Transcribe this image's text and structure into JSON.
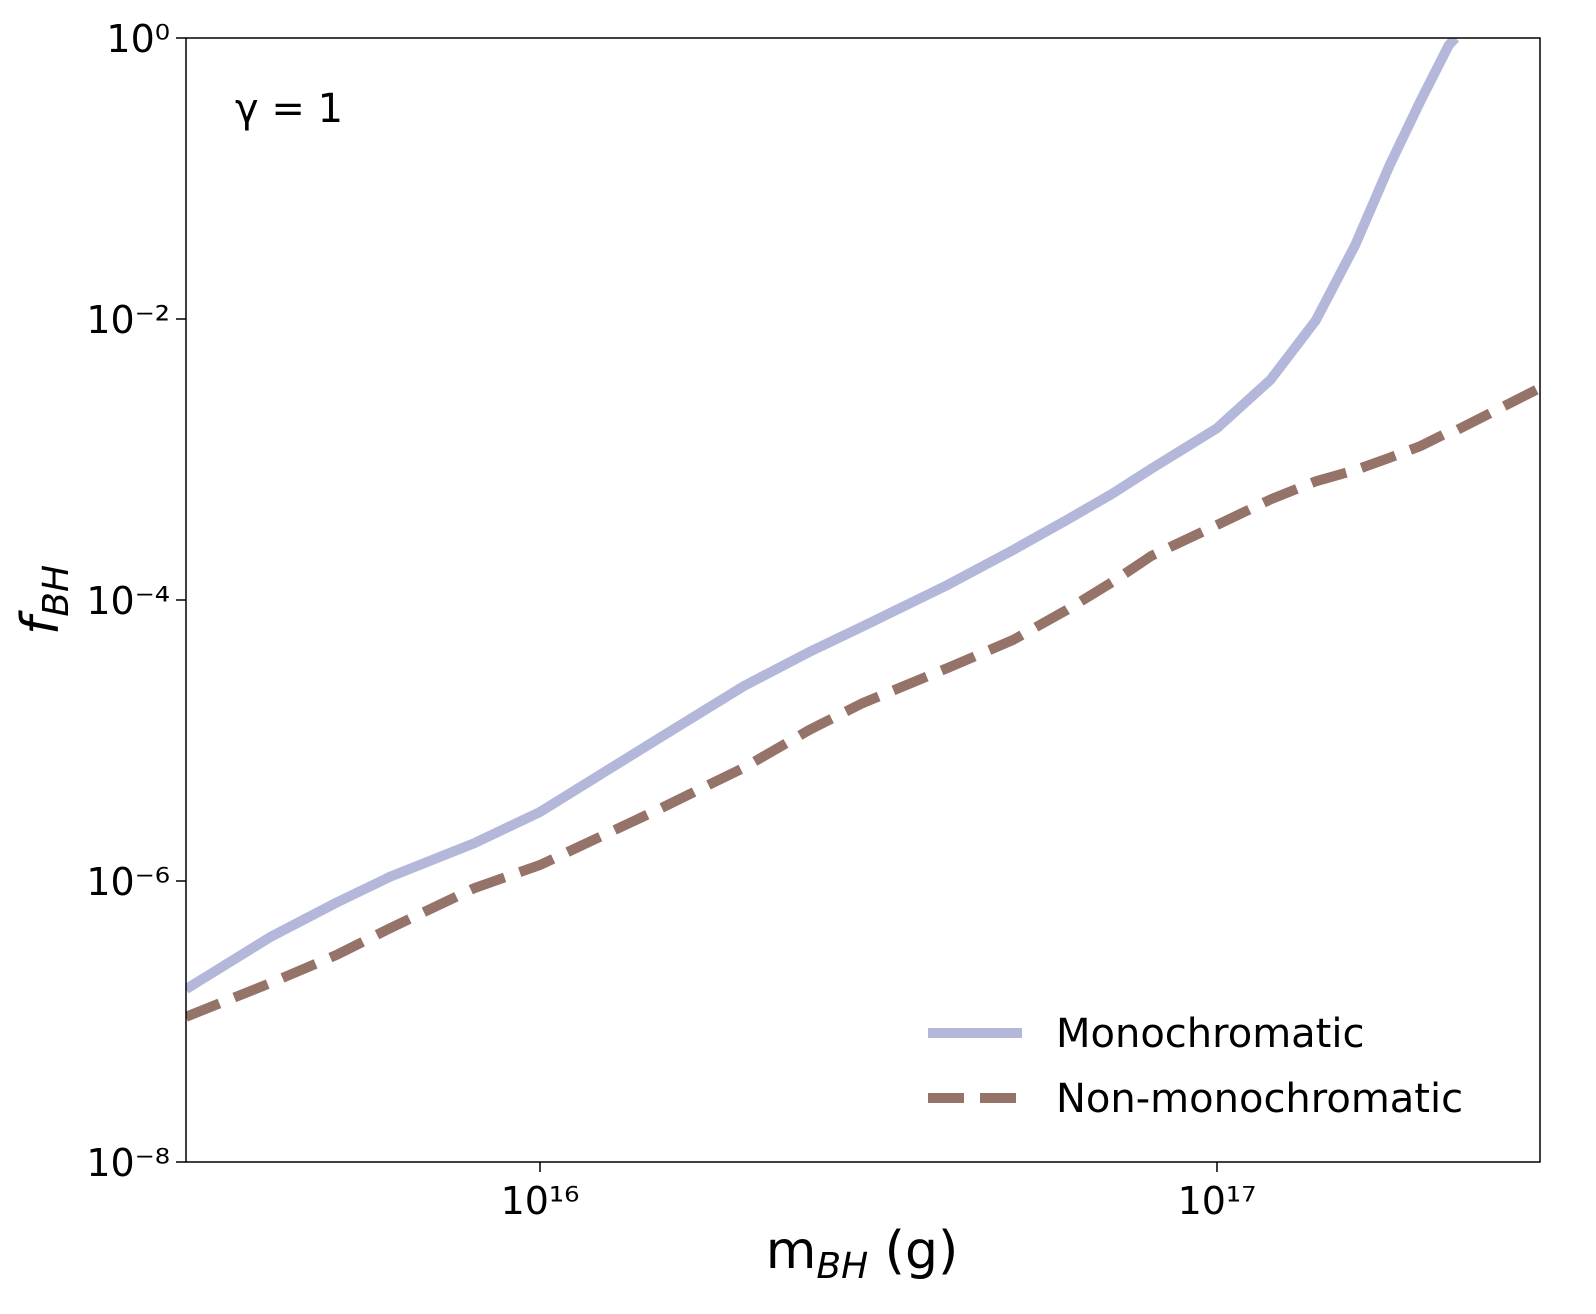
{
  "chart_data": {
    "type": "line",
    "annotation": "γ = 1",
    "xlabel": {
      "main": "m",
      "sub": "BH",
      "unit": " (g)"
    },
    "ylabel": {
      "main": "f",
      "sub": "BH"
    },
    "xscale": "log",
    "yscale": "log",
    "xlim": [
      3000000000000000.0,
      3e+17
    ],
    "ylim": [
      1e-08,
      1
    ],
    "xticks": [
      {
        "value": 1e+16,
        "label": "10¹⁶"
      },
      {
        "value": 1e+17,
        "label": "10¹⁷"
      }
    ],
    "yticks": [
      {
        "value": 1e-08,
        "label": "10⁻⁸"
      },
      {
        "value": 1e-06,
        "label": "10⁻⁶"
      },
      {
        "value": 0.0001,
        "label": "10⁻⁴"
      },
      {
        "value": 0.01,
        "label": "10⁻²"
      },
      {
        "value": 1,
        "label": "10⁰"
      }
    ],
    "legend": "lower right",
    "x": [
      3000000000000000.0,
      4000000000000000.0,
      5000000000000000.0,
      6000000000000000.0,
      8000000000000000.0,
      1e+16,
      1.5e+16,
      2e+16,
      2.5e+16,
      3e+16,
      4e+16,
      5e+16,
      6e+16,
      7e+16,
      8e+16,
      1e+17,
      1.2e+17,
      1.4e+17,
      1.6e+17,
      1.8e+17,
      2e+17,
      2.2e+17,
      2.25e+17,
      3e+17
    ],
    "series": [
      {
        "name": "Monochromatic",
        "color": "#b3b8da",
        "dash": false,
        "values": [
          1.7e-07,
          4e-07,
          7e-07,
          1.07e-06,
          1.86e-06,
          3.1e-06,
          1.04e-05,
          2.44e-05,
          4.27e-05,
          6.5e-05,
          0.000128,
          0.000227,
          0.000371,
          0.00057,
          0.00086,
          0.00167,
          0.0037,
          0.0098,
          0.0336,
          0.125,
          0.36,
          0.89,
          1.0,
          null
        ]
      },
      {
        "name": "Non-monochromatic",
        "color": "#967368",
        "dash": true,
        "values": [
          1.08e-07,
          1.88e-07,
          2.97e-07,
          4.6e-07,
          8.9e-07,
          1.3e-06,
          3.25e-06,
          6.4e-06,
          1.19e-05,
          1.85e-05,
          3.28e-05,
          5.2e-05,
          8.5e-05,
          0.000134,
          0.000206,
          0.000342,
          0.00052,
          0.0007,
          0.00084,
          0.00103,
          0.00125,
          0.00157,
          0.0016,
          0.00323
        ]
      }
    ]
  }
}
